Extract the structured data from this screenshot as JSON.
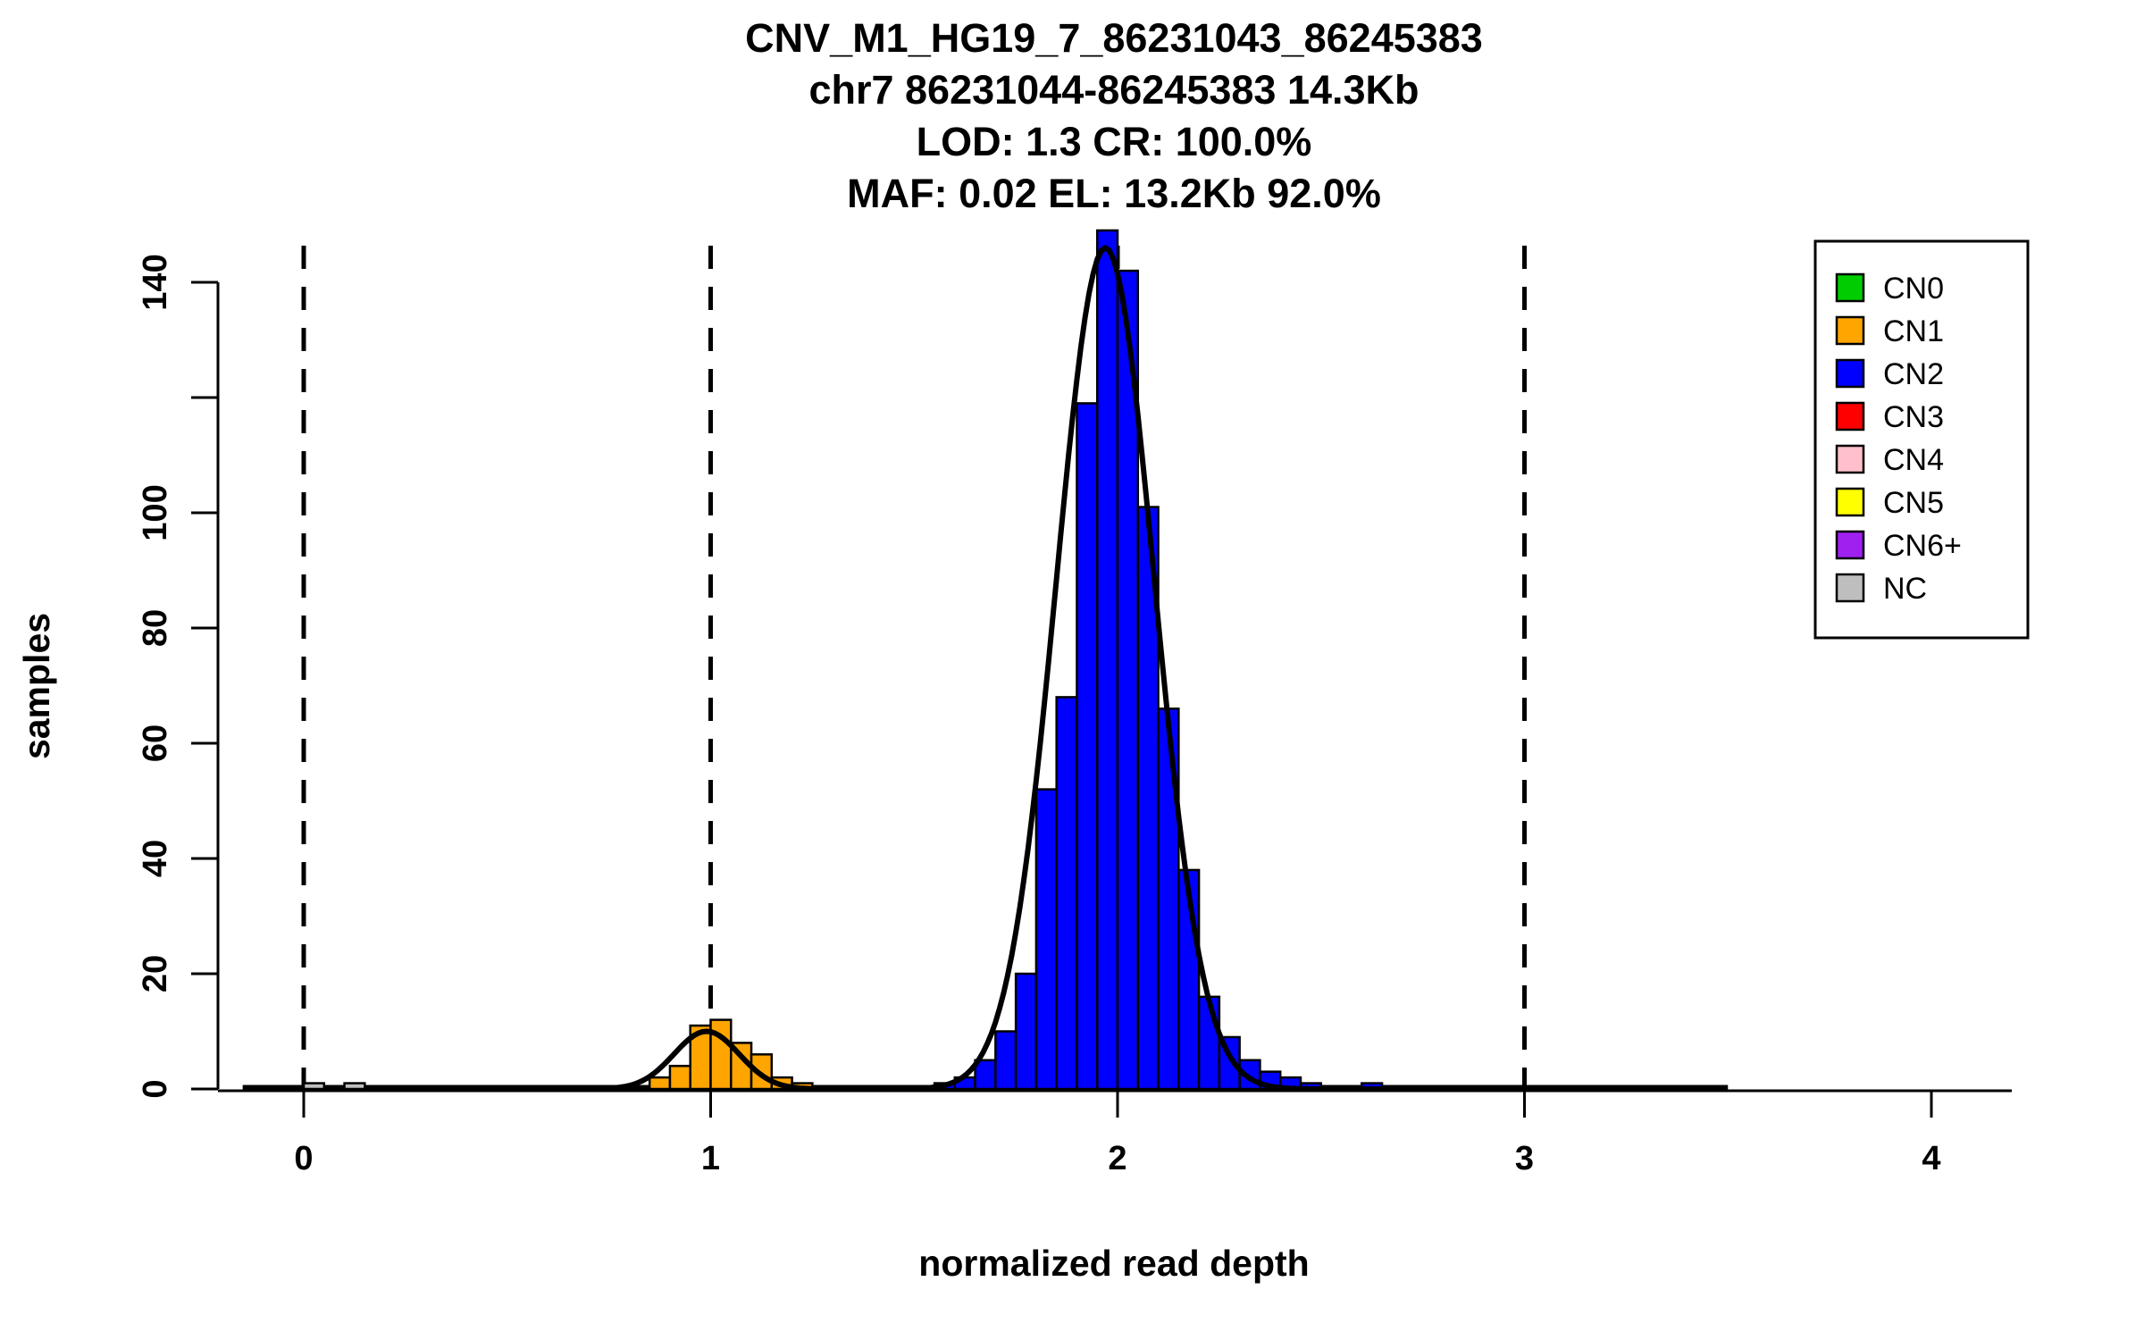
{
  "figure": {
    "background": "#ffffff",
    "foreground": "#000000"
  },
  "chart_data": {
    "type": "bar",
    "subtype": "histogram-with-gaussian-fits",
    "title_lines": [
      "CNV_M1_HG19_7_86231043_86245383",
      "chr7 86231044-86245383 14.3Kb",
      "LOD: 1.3 CR: 100.0%",
      "MAF: 0.02 EL: 13.2Kb 92.0%"
    ],
    "xlabel": "normalized read depth",
    "ylabel": "samples",
    "xlim": [
      -0.21,
      4.2
    ],
    "ylim": [
      0,
      150
    ],
    "xticks": [
      {
        "v": 0,
        "label": "0"
      },
      {
        "v": 1,
        "label": "1"
      },
      {
        "v": 2,
        "label": "2"
      },
      {
        "v": 3,
        "label": "3"
      },
      {
        "v": 4,
        "label": "4"
      }
    ],
    "yticks": [
      {
        "v": 0,
        "label": "0"
      },
      {
        "v": 20,
        "label": "20"
      },
      {
        "v": 40,
        "label": "40"
      },
      {
        "v": 60,
        "label": "60"
      },
      {
        "v": 80,
        "label": "80"
      },
      {
        "v": 100,
        "label": "100"
      },
      {
        "v": 120,
        "label": ""
      },
      {
        "v": 140,
        "label": "140"
      }
    ],
    "dashed_lines_x": [
      0,
      1,
      2,
      3
    ],
    "bin_width": 0.05,
    "series": [
      {
        "name": "NC",
        "color": "#BEBEBE",
        "bins": [
          {
            "x": 0.0,
            "count": 1
          },
          {
            "x": 0.1,
            "count": 1
          }
        ]
      },
      {
        "name": "CN1",
        "color": "#FFA500",
        "bins": [
          {
            "x": 0.85,
            "count": 2
          },
          {
            "x": 0.9,
            "count": 4
          },
          {
            "x": 0.95,
            "count": 11
          },
          {
            "x": 1.0,
            "count": 12
          },
          {
            "x": 1.05,
            "count": 8
          },
          {
            "x": 1.1,
            "count": 6
          },
          {
            "x": 1.15,
            "count": 2
          },
          {
            "x": 1.2,
            "count": 1
          }
        ]
      },
      {
        "name": "CN2",
        "color": "#0000FF",
        "bins": [
          {
            "x": 1.55,
            "count": 1
          },
          {
            "x": 1.6,
            "count": 2
          },
          {
            "x": 1.65,
            "count": 5
          },
          {
            "x": 1.7,
            "count": 10
          },
          {
            "x": 1.75,
            "count": 20
          },
          {
            "x": 1.8,
            "count": 52
          },
          {
            "x": 1.85,
            "count": 68
          },
          {
            "x": 1.9,
            "count": 119
          },
          {
            "x": 1.95,
            "count": 149
          },
          {
            "x": 2.0,
            "count": 142
          },
          {
            "x": 2.05,
            "count": 101
          },
          {
            "x": 2.1,
            "count": 66
          },
          {
            "x": 2.15,
            "count": 38
          },
          {
            "x": 2.2,
            "count": 16
          },
          {
            "x": 2.25,
            "count": 9
          },
          {
            "x": 2.3,
            "count": 5
          },
          {
            "x": 2.35,
            "count": 3
          },
          {
            "x": 2.4,
            "count": 2
          },
          {
            "x": 2.45,
            "count": 1
          },
          {
            "x": 2.6,
            "count": 1
          }
        ]
      }
    ],
    "curves": [
      {
        "name": "CN1-fit",
        "amplitude": 10,
        "mean": 0.99,
        "sd": 0.08,
        "range": [
          0.55,
          1.45
        ]
      },
      {
        "name": "CN2-fit",
        "amplitude": 146,
        "mean": 1.97,
        "sd": 0.12,
        "range": [
          1.4,
          2.9
        ]
      },
      {
        "name": "baseline",
        "amplitude": 0,
        "mean": 0,
        "sd": 1,
        "range": [
          -0.15,
          3.5
        ]
      }
    ],
    "legend": {
      "position": "top-right",
      "entries": [
        {
          "label": "CN0",
          "color": "#00CD00"
        },
        {
          "label": "CN1",
          "color": "#FFA500"
        },
        {
          "label": "CN2",
          "color": "#0000FF"
        },
        {
          "label": "CN3",
          "color": "#FF0000"
        },
        {
          "label": "CN4",
          "color": "#FFC0CB"
        },
        {
          "label": "CN5",
          "color": "#FFFF00"
        },
        {
          "label": "CN6+",
          "color": "#A020F0"
        },
        {
          "label": "NC",
          "color": "#BEBEBE"
        }
      ]
    },
    "grid": false
  }
}
